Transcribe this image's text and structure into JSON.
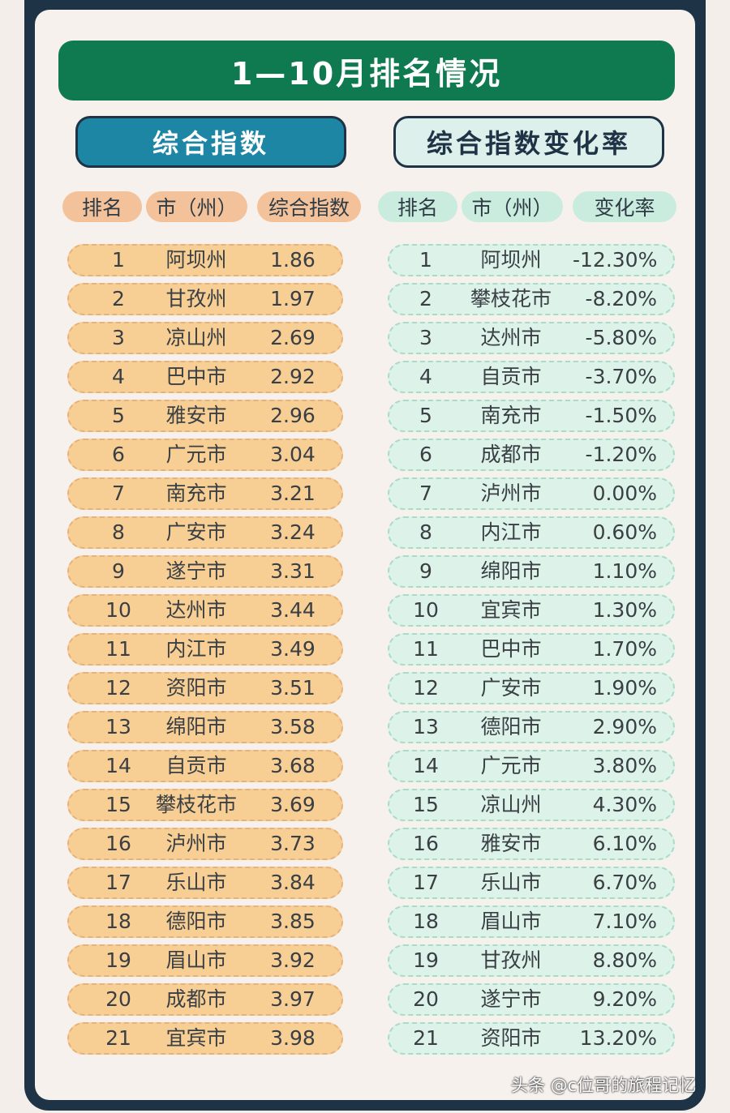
{
  "title": "1—10月排名情况",
  "sections": {
    "left": "综合指数",
    "right": "综合指数变化率"
  },
  "headers": {
    "left": [
      "排名",
      "市（州）",
      "综合指数"
    ],
    "right": [
      "排名",
      "市（州）",
      "变化率"
    ]
  },
  "index_rows": [
    {
      "rank": "1",
      "city": "阿坝州",
      "value": "1.86"
    },
    {
      "rank": "2",
      "city": "甘孜州",
      "value": "1.97"
    },
    {
      "rank": "3",
      "city": "凉山州",
      "value": "2.69"
    },
    {
      "rank": "4",
      "city": "巴中市",
      "value": "2.92"
    },
    {
      "rank": "5",
      "city": "雅安市",
      "value": "2.96"
    },
    {
      "rank": "6",
      "city": "广元市",
      "value": "3.04"
    },
    {
      "rank": "7",
      "city": "南充市",
      "value": "3.21"
    },
    {
      "rank": "8",
      "city": "广安市",
      "value": "3.24"
    },
    {
      "rank": "9",
      "city": "遂宁市",
      "value": "3.31"
    },
    {
      "rank": "10",
      "city": "达州市",
      "value": "3.44"
    },
    {
      "rank": "11",
      "city": "内江市",
      "value": "3.49"
    },
    {
      "rank": "12",
      "city": "资阳市",
      "value": "3.51"
    },
    {
      "rank": "13",
      "city": "绵阳市",
      "value": "3.58"
    },
    {
      "rank": "14",
      "city": "自贡市",
      "value": "3.68"
    },
    {
      "rank": "15",
      "city": "攀枝花市",
      "value": "3.69"
    },
    {
      "rank": "16",
      "city": "泸州市",
      "value": "3.73"
    },
    {
      "rank": "17",
      "city": "乐山市",
      "value": "3.84"
    },
    {
      "rank": "18",
      "city": "德阳市",
      "value": "3.85"
    },
    {
      "rank": "19",
      "city": "眉山市",
      "value": "3.92"
    },
    {
      "rank": "20",
      "city": "成都市",
      "value": "3.97"
    },
    {
      "rank": "21",
      "city": "宜宾市",
      "value": "3.98"
    }
  ],
  "change_rows": [
    {
      "rank": "1",
      "city": "阿坝州",
      "value": "-12.30%"
    },
    {
      "rank": "2",
      "city": "攀枝花市",
      "value": "-8.20%"
    },
    {
      "rank": "3",
      "city": "达州市",
      "value": "-5.80%"
    },
    {
      "rank": "4",
      "city": "自贡市",
      "value": "-3.70%"
    },
    {
      "rank": "5",
      "city": "南充市",
      "value": "-1.50%"
    },
    {
      "rank": "6",
      "city": "成都市",
      "value": "-1.20%"
    },
    {
      "rank": "7",
      "city": "泸州市",
      "value": "0.00%"
    },
    {
      "rank": "8",
      "city": "内江市",
      "value": "0.60%"
    },
    {
      "rank": "9",
      "city": "绵阳市",
      "value": "1.10%"
    },
    {
      "rank": "10",
      "city": "宜宾市",
      "value": "1.30%"
    },
    {
      "rank": "11",
      "city": "巴中市",
      "value": "1.70%"
    },
    {
      "rank": "12",
      "city": "广安市",
      "value": "1.90%"
    },
    {
      "rank": "13",
      "city": "德阳市",
      "value": "2.90%"
    },
    {
      "rank": "14",
      "city": "广元市",
      "value": "3.80%"
    },
    {
      "rank": "15",
      "city": "凉山州",
      "value": "4.30%"
    },
    {
      "rank": "16",
      "city": "雅安市",
      "value": "6.10%"
    },
    {
      "rank": "17",
      "city": "乐山市",
      "value": "6.70%"
    },
    {
      "rank": "18",
      "city": "眉山市",
      "value": "7.10%"
    },
    {
      "rank": "19",
      "city": "甘孜州",
      "value": "8.80%"
    },
    {
      "rank": "20",
      "city": "遂宁市",
      "value": "9.20%"
    },
    {
      "rank": "21",
      "city": "资阳市",
      "value": "13.20%"
    }
  ],
  "watermark": "头条 @c位哥的旅程记忆"
}
